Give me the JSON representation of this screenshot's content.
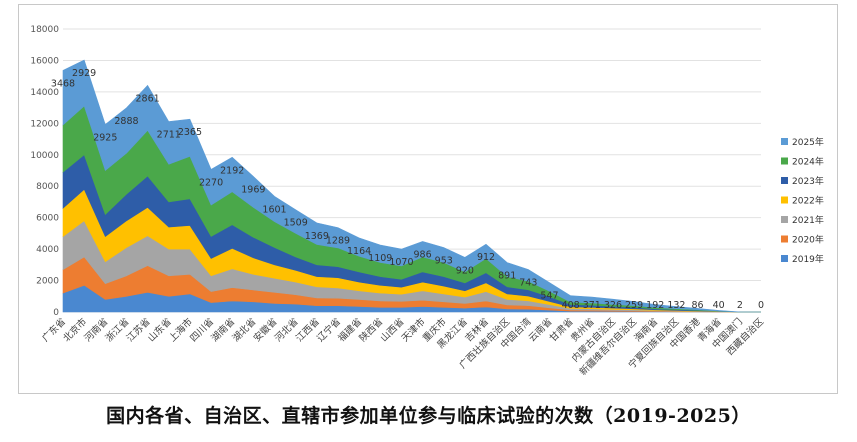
{
  "caption": "国内各省、自治区、直辖市参加单位参与临床试验的次数（2019-2025）",
  "chart_data": {
    "type": "area",
    "stacked": true,
    "yticks": [
      "0",
      "2000",
      "4000",
      "6000",
      "8000",
      "10000",
      "12000",
      "14000",
      "16000",
      "18000"
    ],
    "ylim": [
      0,
      18000
    ],
    "grid": true,
    "legend_position": "right",
    "categories": [
      "广东省",
      "北京市",
      "河南省",
      "浙江省",
      "江苏省",
      "山东省",
      "上海市",
      "四川省",
      "湖南省",
      "湖北省",
      "安徽省",
      "河北省",
      "江西省",
      "辽宁省",
      "福建省",
      "陕西省",
      "山西省",
      "天津市",
      "重庆市",
      "黑龙江省",
      "吉林省",
      "广西壮族自治区",
      "中国台湾",
      "云南省",
      "甘肃省",
      "贵州省",
      "内蒙古自治区",
      "新疆维吾尔自治区",
      "海南省",
      "宁夏回族自治区",
      "中国香港",
      "青海省",
      "中国澳门",
      "西藏自治区"
    ],
    "series": [
      {
        "name": "2019年",
        "color": "#4a88d0",
        "values": [
          1200,
          1700,
          800,
          1000,
          1250,
          1000,
          1150,
          600,
          700,
          650,
          550,
          500,
          400,
          400,
          350,
          300,
          300,
          350,
          300,
          250,
          320,
          200,
          180,
          120,
          60,
          55,
          45,
          35,
          25,
          15,
          10,
          5,
          0,
          0
        ]
      },
      {
        "name": "2020年",
        "color": "#ed7d31",
        "values": [
          1500,
          1800,
          1000,
          1300,
          1700,
          1300,
          1250,
          700,
          850,
          750,
          700,
          600,
          500,
          480,
          450,
          400,
          380,
          400,
          350,
          300,
          380,
          250,
          230,
          150,
          70,
          65,
          50,
          45,
          30,
          20,
          15,
          5,
          0,
          0
        ]
      },
      {
        "name": "2021年",
        "color": "#a5a5a5",
        "values": [
          2100,
          2300,
          1400,
          1800,
          1900,
          1700,
          1600,
          1000,
          1200,
          1000,
          900,
          800,
          700,
          650,
          550,
          500,
          450,
          600,
          500,
          400,
          600,
          350,
          300,
          200,
          100,
          90,
          70,
          60,
          40,
          30,
          20,
          10,
          0,
          0
        ]
      },
      {
        "name": "2022年",
        "color": "#ffc000",
        "values": [
          1800,
          2000,
          1600,
          1700,
          1800,
          1400,
          1500,
          1100,
          1300,
          1050,
          850,
          750,
          650,
          650,
          550,
          500,
          450,
          550,
          500,
          400,
          550,
          350,
          300,
          200,
          100,
          90,
          80,
          65,
          45,
          35,
          25,
          10,
          0,
          0
        ]
      },
      {
        "name": "2023年",
        "color": "#2e5da8",
        "values": [
          2300,
          2200,
          1400,
          1700,
          2000,
          1600,
          1700,
          1400,
          1500,
          1300,
          1100,
          850,
          750,
          700,
          650,
          550,
          500,
          650,
          600,
          500,
          650,
          450,
          400,
          300,
          150,
          135,
          115,
          95,
          65,
          50,
          35,
          15,
          0,
          0
        ]
      },
      {
        "name": "2024年",
        "color": "#4aa84a",
        "values": [
          3000,
          3100,
          2800,
          2600,
          2900,
          2400,
          2700,
          2000,
          2100,
          1900,
          1650,
          1500,
          1300,
          1200,
          1000,
          900,
          850,
          950,
          900,
          700,
          900,
          650,
          550,
          350,
          150,
          140,
          125,
          110,
          80,
          60,
          40,
          15,
          2,
          0
        ]
      },
      {
        "name": "2025年",
        "color": "#5b9bd5",
        "values": [
          3468,
          2929,
          2925,
          2888,
          2861,
          2711,
          2365,
          2270,
          2192,
          1969,
          1601,
          1509,
          1369,
          1289,
          1164,
          1109,
          1070,
          986,
          953,
          920,
          912,
          891,
          743,
          547,
          408,
          371,
          326,
          259,
          192,
          132,
          86,
          40,
          2,
          0
        ]
      }
    ],
    "data_labels": [
      "3468",
      "2929",
      "2925",
      "2888",
      "2861",
      "2711",
      "2365",
      "2270",
      "2192",
      "1969",
      "1601",
      "1509",
      "1369",
      "1289",
      "1164",
      "1109",
      "1070",
      "986",
      "953",
      "920",
      "912",
      "891",
      "743",
      "547",
      "408",
      "371",
      "326",
      "259",
      "192",
      "132",
      "86",
      "40",
      "2",
      "0"
    ]
  }
}
